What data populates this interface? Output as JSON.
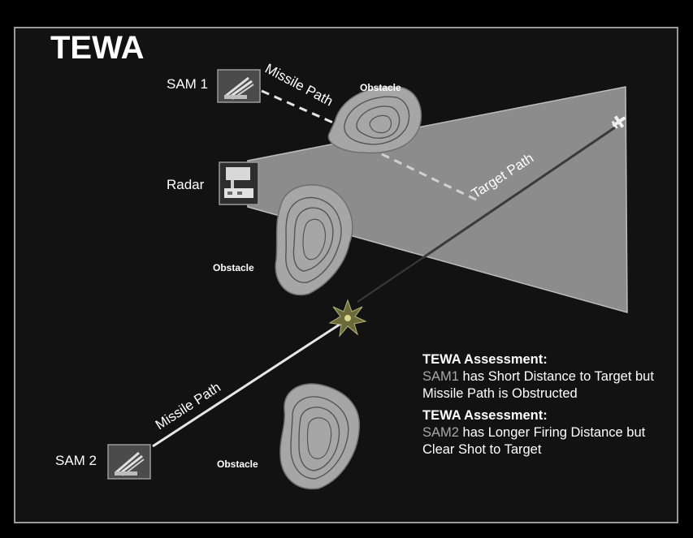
{
  "title": "TEWA",
  "units": {
    "sam1": "SAM 1",
    "sam2": "SAM 2",
    "radar": "Radar"
  },
  "obstacle_label": "Obstacle",
  "paths": {
    "missile_path_1": "Missile Path",
    "missile_path_2": "Missile Path",
    "target_path": "Target Path"
  },
  "icons": {
    "sam1": "missile-launcher-icon",
    "sam2": "missile-launcher-icon",
    "radar": "radar-icon",
    "target": "aircraft-icon",
    "intercept": "explosion-icon"
  },
  "assessments": [
    {
      "heading": "TEWA Assessment:",
      "sam": "SAM1",
      "text": " has Short Distance to Target but Missile Path is Obstructed"
    },
    {
      "heading": "TEWA Assessment:",
      "sam": "SAM2",
      "text": " has Longer Firing Distance but Clear Shot to Target"
    }
  ],
  "colors": {
    "background": "#121212",
    "radar_beam": "#8c8c8c",
    "obstacle_fill": "#a6a6a6",
    "obstacle_contour": "#555555",
    "path_line": "#e6e6e6",
    "text": "#ffffff",
    "sam_highlight": "#a8a8a8"
  }
}
